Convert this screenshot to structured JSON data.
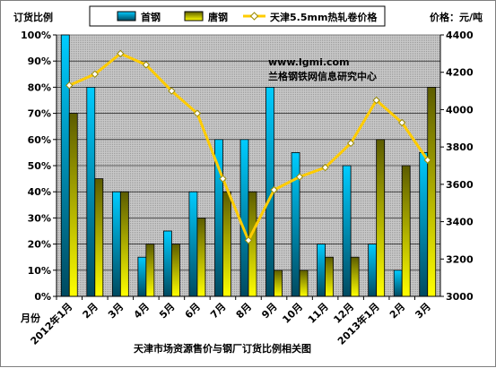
{
  "chart_data": {
    "type": "bar",
    "title": "天津市场资源售价与钢厂订货比例相关图",
    "ylabel": "订货比例",
    "y2label": "价格：元/吨",
    "xlabel": "月份",
    "categories": [
      "2012年1月",
      "2月",
      "3月",
      "4月",
      "5月",
      "6月",
      "7月",
      "8月",
      "9月",
      "10月",
      "11月",
      "12月",
      "2013年1月",
      "2月",
      "3月"
    ],
    "ylim": [
      0,
      100
    ],
    "yticks": [
      "0%",
      "10%",
      "20%",
      "30%",
      "40%",
      "50%",
      "60%",
      "70%",
      "80%",
      "90%",
      "100%"
    ],
    "y2lim": [
      3000,
      4400
    ],
    "y2ticks": [
      "3000",
      "3200",
      "3400",
      "3600",
      "3800",
      "4000",
      "4200",
      "4400"
    ],
    "grid": true,
    "legend_position": "top",
    "series": [
      {
        "name": "首钢",
        "type": "bar",
        "axis": "left",
        "values": [
          100,
          80,
          40,
          15,
          25,
          40,
          60,
          60,
          80,
          55,
          20,
          50,
          20,
          10,
          55
        ]
      },
      {
        "name": "唐钢",
        "type": "bar",
        "axis": "left",
        "values": [
          70,
          45,
          40,
          20,
          20,
          30,
          40,
          40,
          10,
          10,
          15,
          15,
          60,
          50,
          80
        ]
      },
      {
        "name": "天津5.5mm热轧卷价格",
        "type": "line",
        "axis": "right",
        "values": [
          4130,
          4190,
          4300,
          4240,
          4100,
          3980,
          3630,
          3300,
          3570,
          3640,
          3690,
          3820,
          4050,
          3930,
          3730
        ]
      }
    ],
    "watermark": [
      "www.lgmi.com",
      "兰格钢铁网信息研究中心"
    ]
  },
  "colors": {
    "plot_background": "#c0c0c0",
    "shougang_top": "#00ccff",
    "shougang_bottom": "#004a60",
    "tanggang_top": "#5c5c00",
    "tanggang_bottom": "#ffff00",
    "price_line": "#ffcc00"
  }
}
